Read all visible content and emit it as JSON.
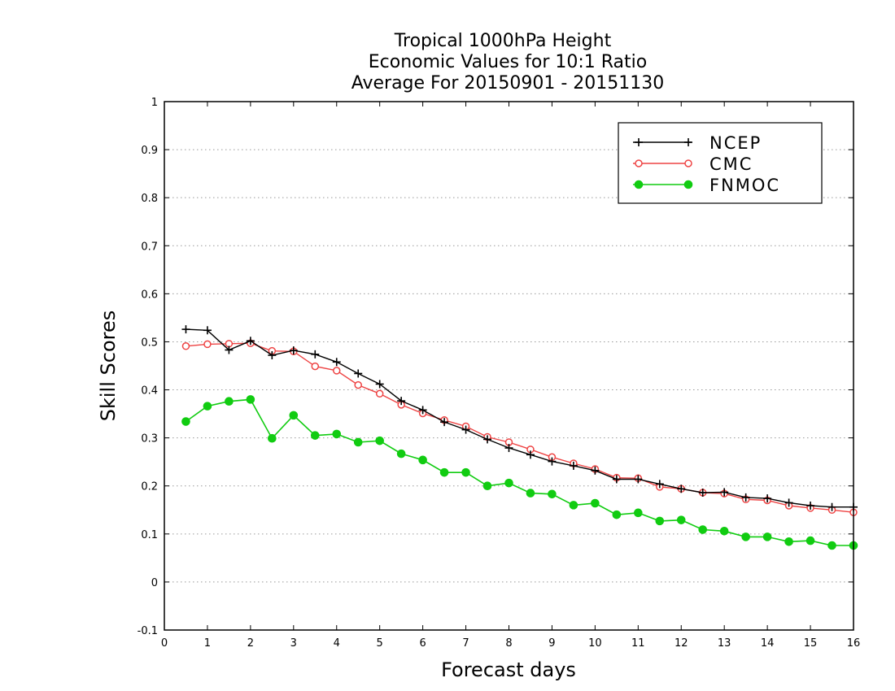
{
  "chart_data": {
    "type": "line",
    "title_lines": [
      "Tropical 1000hPa Height",
      "Economic Values for 10:1 Ratio",
      "Average For 20150901 - 20151130"
    ],
    "xlabel": "Forecast days",
    "ylabel": "Skill Scores",
    "xlim": [
      0,
      16
    ],
    "ylim": [
      -0.1,
      1
    ],
    "xticks": [
      0,
      1,
      2,
      3,
      4,
      5,
      6,
      7,
      8,
      9,
      10,
      11,
      12,
      13,
      14,
      15,
      16
    ],
    "xtick_labels": [
      "0",
      "1",
      "2",
      "3",
      "4",
      "5",
      "6",
      "7",
      "8",
      "9",
      "10",
      "11",
      "12",
      "13",
      "14",
      "15",
      "16"
    ],
    "yticks": [
      -0.1,
      0,
      0.1,
      0.2,
      0.3,
      0.4,
      0.5,
      0.6,
      0.7,
      0.8,
      0.9,
      1
    ],
    "ytick_labels": [
      "-0.1",
      "0",
      "0.1",
      "0.2",
      "0.3",
      "0.4",
      "0.5",
      "0.6",
      "0.7",
      "0.8",
      "0.9",
      "1"
    ],
    "grid": "horizontal dotted",
    "legend_position": "top-right",
    "x": [
      0.5,
      1,
      1.5,
      2,
      2.5,
      3,
      3.5,
      4,
      4.5,
      5,
      5.5,
      6,
      6.5,
      7,
      7.5,
      8,
      8.5,
      9,
      9.5,
      10,
      10.5,
      11,
      11.5,
      12,
      12.5,
      13,
      13.5,
      14,
      14.5,
      15,
      15.5,
      16
    ],
    "series": [
      {
        "name": "NCEP",
        "color": "#000000",
        "marker": "plus",
        "values": [
          0.526,
          0.524,
          0.483,
          0.502,
          0.472,
          0.482,
          0.474,
          0.458,
          0.434,
          0.412,
          0.377,
          0.358,
          0.333,
          0.317,
          0.297,
          0.279,
          0.265,
          0.251,
          0.242,
          0.232,
          0.214,
          0.214,
          0.204,
          0.194,
          0.186,
          0.187,
          0.176,
          0.174,
          0.165,
          0.159,
          0.156,
          0.156
        ]
      },
      {
        "name": "CMC",
        "color": "#ee4444",
        "marker": "open-circle",
        "values": [
          0.491,
          0.495,
          0.496,
          0.497,
          0.481,
          0.48,
          0.449,
          0.44,
          0.41,
          0.392,
          0.369,
          0.351,
          0.337,
          0.324,
          0.302,
          0.291,
          0.276,
          0.26,
          0.247,
          0.235,
          0.217,
          0.216,
          0.198,
          0.194,
          0.186,
          0.184,
          0.172,
          0.17,
          0.159,
          0.154,
          0.15,
          0.145
        ]
      },
      {
        "name": "FNMOC",
        "color": "#11cc11",
        "marker": "filled-circle",
        "values": [
          0.334,
          0.366,
          0.376,
          0.38,
          0.299,
          0.347,
          0.305,
          0.308,
          0.291,
          0.294,
          0.267,
          0.254,
          0.228,
          0.228,
          0.2,
          0.206,
          0.185,
          0.183,
          0.16,
          0.164,
          0.14,
          0.144,
          0.127,
          0.129,
          0.109,
          0.106,
          0.094,
          0.094,
          0.084,
          0.086,
          0.076,
          0.076
        ]
      }
    ]
  }
}
